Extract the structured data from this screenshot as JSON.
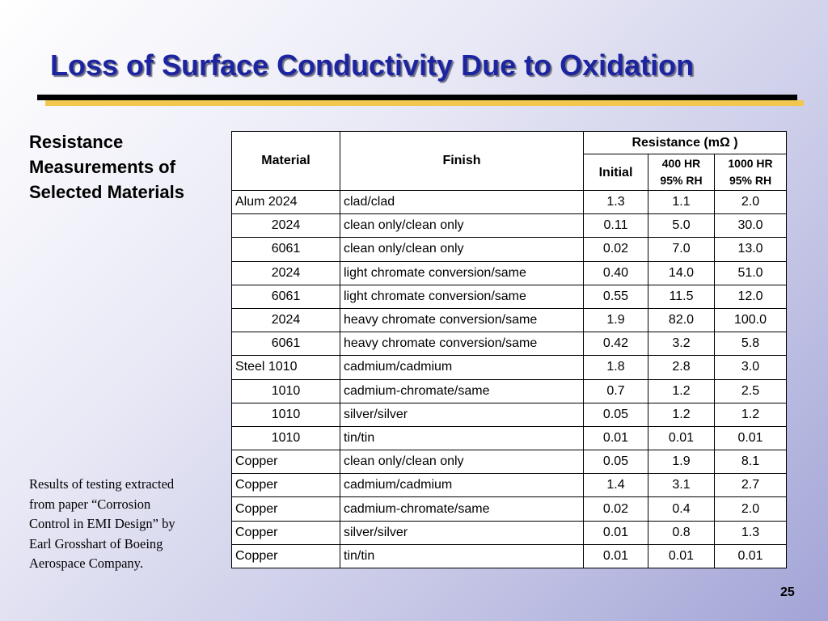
{
  "title": "Loss of Surface Conductivity Due to Oxidation",
  "subtitle_lines": [
    "Resistance",
    "Measurements of",
    "Selected Materials"
  ],
  "note_lines": [
    "Results of testing extracted",
    "from paper “Corrosion",
    "Control in EMI Design” by",
    "Earl Grosshart of Boeing",
    "Aerospace Company."
  ],
  "page_number": "25",
  "colors": {
    "title": "#1c24a0",
    "rule": "#000000",
    "rule_shadow": "#f3c74f"
  },
  "table": {
    "headers": {
      "material": "Material",
      "finish": "Finish",
      "resistance": "Resistance (mΩ  )",
      "initial": "Initial",
      "hr400_line1": "400 HR",
      "hr400_line2": "95% RH",
      "hr1000_line1": "1000 HR",
      "hr1000_line2": "95% RH"
    },
    "rows": [
      {
        "material": "Alum 2024",
        "align": "left",
        "finish": "clad/clad",
        "initial": "1.3",
        "hr400": "1.1",
        "hr1000": "2.0"
      },
      {
        "material": "2024",
        "align": "center",
        "finish": "clean only/clean only",
        "initial": "0.11",
        "hr400": "5.0",
        "hr1000": "30.0"
      },
      {
        "material": "6061",
        "align": "center",
        "finish": "clean only/clean only",
        "initial": "0.02",
        "hr400": "7.0",
        "hr1000": "13.0"
      },
      {
        "material": "2024",
        "align": "center",
        "finish": "light chromate conversion/same",
        "initial": "0.40",
        "hr400": "14.0",
        "hr1000": "51.0"
      },
      {
        "material": "6061",
        "align": "center",
        "finish": "light chromate conversion/same",
        "initial": "0.55",
        "hr400": "11.5",
        "hr1000": "12.0"
      },
      {
        "material": "2024",
        "align": "center",
        "finish": "heavy chromate conversion/same",
        "initial": "1.9",
        "hr400": "82.0",
        "hr1000": "100.0"
      },
      {
        "material": "6061",
        "align": "center",
        "finish": "heavy chromate conversion/same",
        "initial": "0.42",
        "hr400": "3.2",
        "hr1000": "5.8"
      },
      {
        "material": "Steel 1010",
        "align": "left",
        "finish": "cadmium/cadmium",
        "initial": "1.8",
        "hr400": "2.8",
        "hr1000": "3.0"
      },
      {
        "material": "1010",
        "align": "center",
        "finish": "cadmium-chromate/same",
        "initial": "0.7",
        "hr400": "1.2",
        "hr1000": "2.5"
      },
      {
        "material": "1010",
        "align": "center",
        "finish": "silver/silver",
        "initial": "0.05",
        "hr400": "1.2",
        "hr1000": "1.2"
      },
      {
        "material": "1010",
        "align": "center",
        "finish": "tin/tin",
        "initial": "0.01",
        "hr400": "0.01",
        "hr1000": "0.01"
      },
      {
        "material": "Copper",
        "align": "left",
        "finish": "clean only/clean only",
        "initial": "0.05",
        "hr400": "1.9",
        "hr1000": "8.1"
      },
      {
        "material": "Copper",
        "align": "left",
        "finish": "cadmium/cadmium",
        "initial": "1.4",
        "hr400": "3.1",
        "hr1000": "2.7"
      },
      {
        "material": "Copper",
        "align": "left",
        "finish": "cadmium-chromate/same",
        "initial": "0.02",
        "hr400": "0.4",
        "hr1000": "2.0"
      },
      {
        "material": "Copper",
        "align": "left",
        "finish": "silver/silver",
        "initial": "0.01",
        "hr400": "0.8",
        "hr1000": "1.3"
      },
      {
        "material": "Copper",
        "align": "left",
        "finish": "tin/tin",
        "initial": "0.01",
        "hr400": "0.01",
        "hr1000": "0.01"
      }
    ]
  }
}
